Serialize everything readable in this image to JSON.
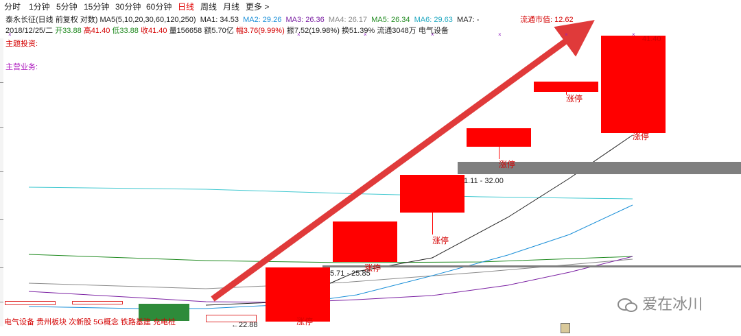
{
  "tabs": [
    "分时",
    "1分钟",
    "5分钟",
    "15分钟",
    "30分钟",
    "60分钟",
    "日线",
    "周线",
    "月线",
    "更多 >"
  ],
  "active_tab": "日线",
  "header": {
    "stock_title": "泰永长征(日线 前复权 对数)",
    "ma_params": "MA5(5,10,20,30,60,120,250)",
    "ma1": "MA1: 34.53",
    "ma2": "MA2: 29.26",
    "ma3": "MA3: 26.36",
    "ma4": "MA4: 26.17",
    "ma5": "MA5: 26.34",
    "ma6": "MA6: 29.63",
    "ma7": "MA7: -",
    "market_cap": "流通市值: 12.62"
  },
  "quote": {
    "date": "2018/12/25/二",
    "open": "开33.88",
    "high": "高41.40",
    "low": "低33.88",
    "close": "收41.40",
    "volume": "量156658",
    "amount": "额5.70亿",
    "change": "幅3.76(9.99%)",
    "amplitude": "振7.52(19.98%)",
    "turnover": "换51.39%",
    "float_shares": "流通3048万",
    "sector": "电气设备"
  },
  "left_labels": {
    "theme": "主题投资:",
    "business": "主营业务:"
  },
  "candle_labels": [
    "涨停",
    "涨停",
    "涨停",
    "涨停",
    "涨停",
    "涨停"
  ],
  "range_labels": {
    "r1": "5.71 - 25.85",
    "r2": "1.11 - 32.00"
  },
  "price_labels": {
    "high": "41.40",
    "low": "←22.88"
  },
  "bottom_tags": "电气设备 贵州板块 次新股 5G概念 铁路基建 充电桩",
  "watermark": "爱在冰川",
  "colors": {
    "candle": "#ff0000",
    "ma1": "#222222",
    "ma2": "#1a8fd8",
    "ma3": "#7a1fa2",
    "ma4": "#8a8a8a",
    "ma5": "#1f8a1f",
    "ma6": "#40c8d0",
    "arrow": "#e03a3a",
    "accent": "#d40000"
  }
}
